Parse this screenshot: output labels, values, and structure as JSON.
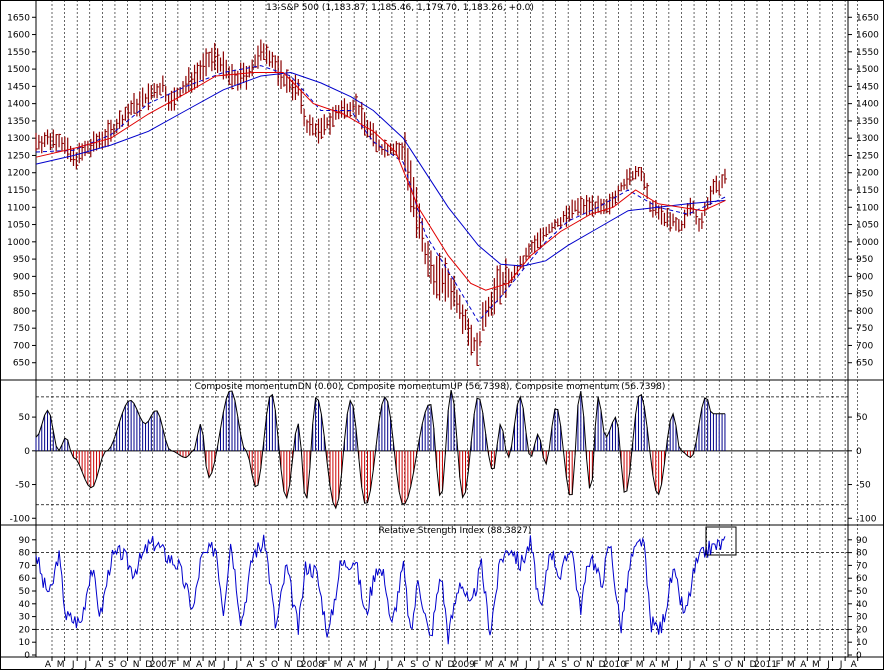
{
  "colors": {
    "price_bar": "#8b0000",
    "ma_red": "#e00000",
    "ma_blue": "#0000cc",
    "ma_dash": "#0000cc",
    "momentum_up": "#00008b",
    "momentum_down": "#cc0000",
    "rsi_line": "#0000cc",
    "grid": "#000000",
    "background": "#ffffff"
  },
  "chart_data": [
    {
      "type": "line",
      "title": "13-S&P 500 (1,183.87, 1,185.46, 1,179.70, 1,183.26, +0.0)",
      "ylim": [
        600,
        1700
      ],
      "y_ticks": [
        650,
        700,
        750,
        800,
        850,
        900,
        950,
        1000,
        1050,
        1100,
        1150,
        1200,
        1250,
        1300,
        1350,
        1400,
        1450,
        1500,
        1550,
        1600,
        1650
      ],
      "x_labels": [
        "A",
        "M",
        "J",
        "J",
        "A",
        "S",
        "O",
        "N",
        "D",
        "2007",
        "F",
        "M",
        "A",
        "M",
        "J",
        "J",
        "A",
        "S",
        "O",
        "N",
        "D",
        "2008",
        "F",
        "M",
        "A",
        "M",
        "J",
        "J",
        "A",
        "S",
        "O",
        "N",
        "D",
        "2009",
        "F",
        "M",
        "A",
        "M",
        "J",
        "J",
        "A",
        "S",
        "O",
        "N",
        "D",
        "2010",
        "F",
        "M",
        "A",
        "M",
        "J",
        "J",
        "A",
        "S",
        "O",
        "N",
        "D",
        "2011",
        "F",
        "M",
        "A",
        "M",
        "J",
        "J",
        "A"
      ],
      "x_start": 2006.25,
      "x_end": 2011.667,
      "price_anchors": [
        [
          2006.25,
          1290
        ],
        [
          2006.4,
          1300
        ],
        [
          2006.5,
          1240
        ],
        [
          2006.6,
          1270
        ],
        [
          2006.75,
          1320
        ],
        [
          2006.9,
          1390
        ],
        [
          2007.0,
          1420
        ],
        [
          2007.1,
          1450
        ],
        [
          2007.15,
          1400
        ],
        [
          2007.3,
          1480
        ],
        [
          2007.45,
          1540
        ],
        [
          2007.55,
          1470
        ],
        [
          2007.65,
          1480
        ],
        [
          2007.78,
          1560
        ],
        [
          2007.9,
          1470
        ],
        [
          2008.0,
          1440
        ],
        [
          2008.05,
          1340
        ],
        [
          2008.15,
          1320
        ],
        [
          2008.25,
          1370
        ],
        [
          2008.38,
          1400
        ],
        [
          2008.45,
          1340
        ],
        [
          2008.55,
          1270
        ],
        [
          2008.65,
          1270
        ],
        [
          2008.72,
          1250
        ],
        [
          2008.78,
          1100
        ],
        [
          2008.85,
          950
        ],
        [
          2008.92,
          900
        ],
        [
          2009.0,
          880
        ],
        [
          2009.08,
          820
        ],
        [
          2009.15,
          730
        ],
        [
          2009.19,
          680
        ],
        [
          2009.25,
          800
        ],
        [
          2009.35,
          880
        ],
        [
          2009.45,
          910
        ],
        [
          2009.55,
          980
        ],
        [
          2009.65,
          1030
        ],
        [
          2009.75,
          1060
        ],
        [
          2009.85,
          1100
        ],
        [
          2009.95,
          1110
        ],
        [
          2010.05,
          1090
        ],
        [
          2010.15,
          1160
        ],
        [
          2010.28,
          1210
        ],
        [
          2010.35,
          1100
        ],
        [
          2010.45,
          1070
        ],
        [
          2010.55,
          1040
        ],
        [
          2010.62,
          1110
        ],
        [
          2010.68,
          1050
        ],
        [
          2010.75,
          1140
        ],
        [
          2010.85,
          1183
        ]
      ],
      "ma_red": [
        [
          2006.25,
          1245
        ],
        [
          2006.5,
          1270
        ],
        [
          2006.75,
          1300
        ],
        [
          2007.0,
          1370
        ],
        [
          2007.25,
          1430
        ],
        [
          2007.45,
          1480
        ],
        [
          2007.7,
          1490
        ],
        [
          2007.9,
          1490
        ],
        [
          2008.1,
          1400
        ],
        [
          2008.3,
          1370
        ],
        [
          2008.5,
          1320
        ],
        [
          2008.65,
          1260
        ],
        [
          2008.8,
          1100
        ],
        [
          2009.0,
          960
        ],
        [
          2009.15,
          880
        ],
        [
          2009.25,
          860
        ],
        [
          2009.4,
          880
        ],
        [
          2009.55,
          960
        ],
        [
          2009.75,
          1030
        ],
        [
          2009.95,
          1080
        ],
        [
          2010.1,
          1100
        ],
        [
          2010.25,
          1150
        ],
        [
          2010.4,
          1110
        ],
        [
          2010.55,
          1100
        ],
        [
          2010.7,
          1090
        ],
        [
          2010.85,
          1120
        ]
      ],
      "ma_blue": [
        [
          2006.25,
          1225
        ],
        [
          2006.5,
          1250
        ],
        [
          2006.75,
          1280
        ],
        [
          2007.0,
          1320
        ],
        [
          2007.25,
          1380
        ],
        [
          2007.5,
          1440
        ],
        [
          2007.75,
          1480
        ],
        [
          2007.95,
          1490
        ],
        [
          2008.15,
          1460
        ],
        [
          2008.35,
          1420
        ],
        [
          2008.5,
          1380
        ],
        [
          2008.7,
          1300
        ],
        [
          2008.85,
          1200
        ],
        [
          2009.0,
          1100
        ],
        [
          2009.2,
          990
        ],
        [
          2009.35,
          935
        ],
        [
          2009.5,
          930
        ],
        [
          2009.65,
          945
        ],
        [
          2009.8,
          990
        ],
        [
          2010.0,
          1040
        ],
        [
          2010.2,
          1090
        ],
        [
          2010.4,
          1100
        ],
        [
          2010.6,
          1110
        ],
        [
          2010.85,
          1120
        ]
      ],
      "ma_dash": [
        [
          2006.25,
          1260
        ],
        [
          2006.5,
          1265
        ],
        [
          2006.75,
          1310
        ],
        [
          2007.0,
          1400
        ],
        [
          2007.25,
          1450
        ],
        [
          2007.5,
          1490
        ],
        [
          2007.75,
          1510
        ],
        [
          2007.95,
          1480
        ],
        [
          2008.15,
          1380
        ],
        [
          2008.35,
          1380
        ],
        [
          2008.5,
          1290
        ],
        [
          2008.7,
          1230
        ],
        [
          2008.85,
          1020
        ],
        [
          2009.05,
          880
        ],
        [
          2009.2,
          770
        ],
        [
          2009.35,
          840
        ],
        [
          2009.5,
          920
        ],
        [
          2009.65,
          1000
        ],
        [
          2009.8,
          1060
        ],
        [
          2010.0,
          1100
        ],
        [
          2010.2,
          1150
        ],
        [
          2010.4,
          1100
        ],
        [
          2010.6,
          1080
        ],
        [
          2010.85,
          1130
        ]
      ]
    },
    {
      "type": "area",
      "title": "Composite momentumDN (0.00), Composite momentumUP (56.7398), Composite momentum (56.7398)",
      "ylim": [
        -110,
        105
      ],
      "y_ticks": [
        50,
        0,
        -50,
        -100
      ],
      "dashed_levels": [
        80,
        -80
      ],
      "extrema": [
        [
          2006.25,
          20
        ],
        [
          2006.33,
          60
        ],
        [
          2006.4,
          0
        ],
        [
          2006.45,
          20
        ],
        [
          2006.5,
          -10
        ],
        [
          2006.62,
          -55
        ],
        [
          2006.72,
          0
        ],
        [
          2006.88,
          75
        ],
        [
          2006.98,
          40
        ],
        [
          2007.05,
          60
        ],
        [
          2007.15,
          0
        ],
        [
          2007.25,
          -10
        ],
        [
          2007.3,
          0
        ],
        [
          2007.35,
          40
        ],
        [
          2007.4,
          -40
        ],
        [
          2007.55,
          90
        ],
        [
          2007.65,
          0
        ],
        [
          2007.72,
          -55
        ],
        [
          2007.82,
          85
        ],
        [
          2007.92,
          -70
        ],
        [
          2008.0,
          40
        ],
        [
          2008.05,
          -75
        ],
        [
          2008.12,
          80
        ],
        [
          2008.25,
          -85
        ],
        [
          2008.35,
          75
        ],
        [
          2008.45,
          -80
        ],
        [
          2008.58,
          80
        ],
        [
          2008.7,
          -80
        ],
        [
          2008.88,
          70
        ],
        [
          2008.95,
          -70
        ],
        [
          2009.02,
          90
        ],
        [
          2009.1,
          -70
        ],
        [
          2009.2,
          80
        ],
        [
          2009.3,
          -30
        ],
        [
          2009.35,
          40
        ],
        [
          2009.4,
          -10
        ],
        [
          2009.48,
          80
        ],
        [
          2009.55,
          -10
        ],
        [
          2009.6,
          25
        ],
        [
          2009.65,
          -20
        ],
        [
          2009.72,
          65
        ],
        [
          2009.82,
          -70
        ],
        [
          2009.88,
          90
        ],
        [
          2009.95,
          -60
        ],
        [
          2010.0,
          80
        ],
        [
          2010.05,
          20
        ],
        [
          2010.12,
          50
        ],
        [
          2010.18,
          -65
        ],
        [
          2010.28,
          85
        ],
        [
          2010.4,
          -65
        ],
        [
          2010.5,
          55
        ],
        [
          2010.55,
          0
        ],
        [
          2010.62,
          -10
        ],
        [
          2010.72,
          80
        ],
        [
          2010.76,
          55
        ]
      ]
    },
    {
      "type": "line",
      "title": "Relative Strength Index (88.3827)",
      "ylim": [
        0,
        100
      ],
      "y_ticks": [
        90,
        80,
        70,
        60,
        50,
        40,
        30,
        20,
        10,
        0
      ],
      "dashed_levels": [
        80,
        20
      ],
      "anchors": [
        [
          2006.25,
          80
        ],
        [
          2006.3,
          55
        ],
        [
          2006.35,
          48
        ],
        [
          2006.4,
          80
        ],
        [
          2006.45,
          30
        ],
        [
          2006.55,
          25
        ],
        [
          2006.62,
          70
        ],
        [
          2006.68,
          30
        ],
        [
          2006.75,
          75
        ],
        [
          2006.82,
          80
        ],
        [
          2006.9,
          65
        ],
        [
          2007.0,
          85
        ],
        [
          2007.05,
          88
        ],
        [
          2007.1,
          80
        ],
        [
          2007.2,
          70
        ],
        [
          2007.3,
          35
        ],
        [
          2007.35,
          75
        ],
        [
          2007.45,
          85
        ],
        [
          2007.5,
          35
        ],
        [
          2007.55,
          90
        ],
        [
          2007.62,
          25
        ],
        [
          2007.7,
          80
        ],
        [
          2007.78,
          88
        ],
        [
          2007.85,
          20
        ],
        [
          2007.92,
          70
        ],
        [
          2008.0,
          20
        ],
        [
          2008.05,
          70
        ],
        [
          2008.12,
          65
        ],
        [
          2008.2,
          15
        ],
        [
          2008.28,
          70
        ],
        [
          2008.38,
          75
        ],
        [
          2008.45,
          30
        ],
        [
          2008.52,
          70
        ],
        [
          2008.58,
          60
        ],
        [
          2008.62,
          20
        ],
        [
          2008.7,
          70
        ],
        [
          2008.75,
          15
        ],
        [
          2008.8,
          60
        ],
        [
          2008.88,
          10
        ],
        [
          2008.95,
          65
        ],
        [
          2009.0,
          15
        ],
        [
          2009.08,
          60
        ],
        [
          2009.15,
          35
        ],
        [
          2009.22,
          70
        ],
        [
          2009.28,
          18
        ],
        [
          2009.35,
          75
        ],
        [
          2009.42,
          85
        ],
        [
          2009.48,
          70
        ],
        [
          2009.55,
          88
        ],
        [
          2009.62,
          30
        ],
        [
          2009.68,
          85
        ],
        [
          2009.75,
          60
        ],
        [
          2009.82,
          88
        ],
        [
          2009.88,
          35
        ],
        [
          2009.95,
          80
        ],
        [
          2010.02,
          55
        ],
        [
          2010.08,
          88
        ],
        [
          2010.15,
          20
        ],
        [
          2010.22,
          75
        ],
        [
          2010.3,
          92
        ],
        [
          2010.35,
          25
        ],
        [
          2010.42,
          20
        ],
        [
          2010.5,
          65
        ],
        [
          2010.58,
          30
        ],
        [
          2010.65,
          70
        ],
        [
          2010.72,
          82
        ],
        [
          2010.85,
          88
        ]
      ]
    }
  ]
}
